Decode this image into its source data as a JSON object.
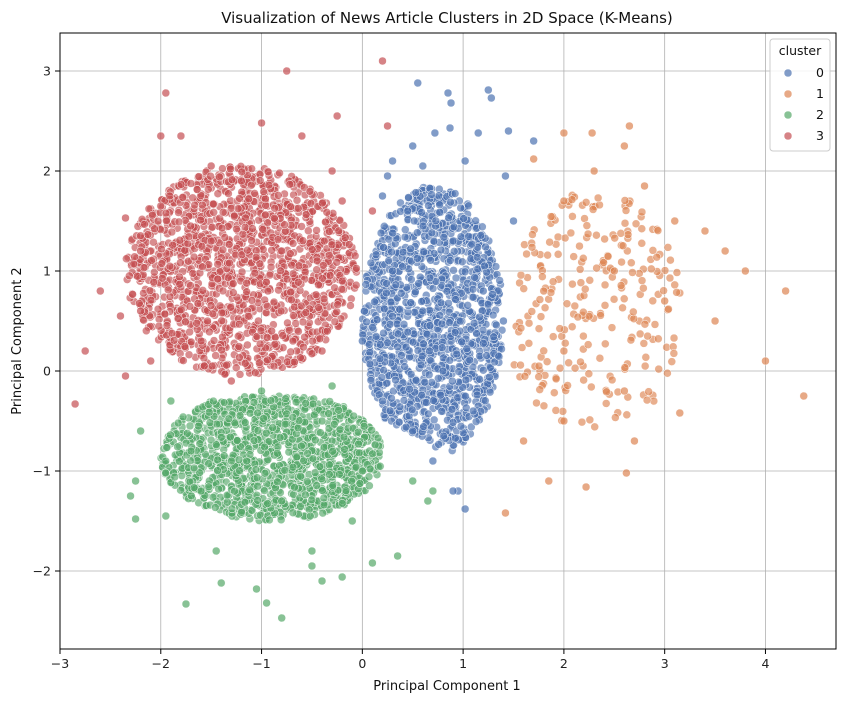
{
  "chart_data": {
    "type": "scatter",
    "title": "Visualization of News Article Clusters in 2D Space (K-Means)",
    "xlabel": "Principal Component 1",
    "ylabel": "Principal Component 2",
    "xlim": [
      -3.0,
      4.7
    ],
    "ylim": [
      -2.78,
      3.38
    ],
    "xticks": [
      -3,
      -2,
      -1,
      0,
      1,
      2,
      3,
      4
    ],
    "yticks": [
      -2,
      -1,
      0,
      1,
      2,
      3
    ],
    "grid": true,
    "legend": {
      "title": "cluster",
      "placement": "top-right",
      "entries": [
        {
          "label": "0",
          "color": "#4c72b0"
        },
        {
          "label": "1",
          "color": "#dd8452"
        },
        {
          "label": "2",
          "color": "#55a868"
        },
        {
          "label": "3",
          "color": "#c44e52"
        }
      ]
    },
    "series": [
      {
        "name": "0",
        "color": "#4c72b0",
        "points": [
          [
            0.55,
            2.88
          ],
          [
            0.85,
            2.78
          ],
          [
            1.25,
            2.81
          ],
          [
            1.28,
            2.73
          ],
          [
            0.88,
            2.68
          ],
          [
            0.72,
            2.38
          ],
          [
            0.87,
            2.43
          ],
          [
            1.15,
            2.38
          ],
          [
            1.45,
            2.4
          ],
          [
            1.7,
            2.3
          ],
          [
            0.5,
            2.25
          ],
          [
            0.3,
            2.1
          ],
          [
            0.6,
            2.05
          ],
          [
            1.02,
            2.1
          ],
          [
            0.25,
            1.95
          ],
          [
            1.42,
            1.95
          ],
          [
            0.2,
            1.75
          ],
          [
            0.45,
            1.6
          ],
          [
            1.5,
            1.5
          ],
          [
            0.9,
            1.3
          ],
          [
            0.3,
            1.0
          ],
          [
            0.6,
            0.6
          ],
          [
            1.2,
            0.8
          ],
          [
            0.0,
            0.3
          ],
          [
            0.8,
            0.0
          ],
          [
            1.4,
            0.5
          ],
          [
            0.2,
            -0.3
          ],
          [
            0.5,
            -0.6
          ],
          [
            1.1,
            -0.4
          ],
          [
            0.7,
            -0.9
          ],
          [
            0.95,
            -1.2
          ],
          [
            0.9,
            -1.2
          ],
          [
            1.02,
            -1.38
          ]
        ]
      },
      {
        "name": "1",
        "color": "#dd8452",
        "points": [
          [
            2.65,
            2.45
          ],
          [
            2.0,
            2.38
          ],
          [
            2.28,
            2.38
          ],
          [
            2.6,
            2.25
          ],
          [
            1.7,
            2.12
          ],
          [
            2.3,
            2.0
          ],
          [
            2.8,
            1.85
          ],
          [
            2.0,
            1.7
          ],
          [
            3.1,
            1.5
          ],
          [
            3.4,
            1.4
          ],
          [
            3.6,
            1.2
          ],
          [
            3.8,
            1.0
          ],
          [
            2.5,
            1.0
          ],
          [
            1.8,
            0.8
          ],
          [
            3.0,
            0.7
          ],
          [
            4.2,
            0.8
          ],
          [
            3.5,
            0.5
          ],
          [
            4.0,
            0.1
          ],
          [
            4.38,
            -0.25
          ],
          [
            2.0,
            0.2
          ],
          [
            2.6,
            -0.2
          ],
          [
            3.15,
            -0.42
          ],
          [
            2.7,
            -0.7
          ],
          [
            2.0,
            -0.5
          ],
          [
            1.6,
            -0.7
          ],
          [
            1.85,
            -1.1
          ],
          [
            2.22,
            -1.16
          ],
          [
            2.62,
            -1.02
          ],
          [
            1.42,
            -1.42
          ]
        ]
      },
      {
        "name": "2",
        "color": "#55a868",
        "points": [
          [
            -0.3,
            -0.15
          ],
          [
            -1.0,
            -0.2
          ],
          [
            -1.9,
            -0.3
          ],
          [
            -2.2,
            -0.6
          ],
          [
            -2.25,
            -1.1
          ],
          [
            -2.25,
            -1.48
          ],
          [
            -2.3,
            -1.25
          ],
          [
            -1.95,
            -1.45
          ],
          [
            -1.6,
            -1.2
          ],
          [
            -1.45,
            -1.8
          ],
          [
            -1.75,
            -2.33
          ],
          [
            -1.4,
            -2.12
          ],
          [
            -1.05,
            -2.18
          ],
          [
            -0.95,
            -2.32
          ],
          [
            -0.8,
            -2.47
          ],
          [
            -0.5,
            -1.95
          ],
          [
            -0.5,
            -1.8
          ],
          [
            -0.4,
            -2.1
          ],
          [
            0.35,
            -1.85
          ],
          [
            0.1,
            -1.92
          ],
          [
            -0.2,
            -2.06
          ],
          [
            0.7,
            -1.2
          ],
          [
            0.65,
            -1.3
          ],
          [
            -0.4,
            -0.5
          ],
          [
            -1.3,
            -0.9
          ],
          [
            -0.8,
            -1.3
          ],
          [
            0.0,
            -1.0
          ],
          [
            0.5,
            -1.1
          ],
          [
            -1.7,
            -0.8
          ],
          [
            -0.1,
            -1.5
          ]
        ]
      },
      {
        "name": "3",
        "color": "#c44e52",
        "points": [
          [
            -2.85,
            -0.33
          ],
          [
            -2.75,
            0.2
          ],
          [
            -2.35,
            -0.05
          ],
          [
            -2.4,
            0.55
          ],
          [
            -2.35,
            1.53
          ],
          [
            -2.0,
            1.65
          ],
          [
            -1.95,
            2.78
          ],
          [
            -2.0,
            2.35
          ],
          [
            -1.8,
            2.35
          ],
          [
            -1.0,
            2.48
          ],
          [
            -0.6,
            2.35
          ],
          [
            -0.25,
            2.55
          ],
          [
            -0.75,
            3.0
          ],
          [
            0.2,
            3.1
          ],
          [
            0.25,
            2.45
          ],
          [
            -1.5,
            2.05
          ],
          [
            -1.2,
            1.9
          ],
          [
            -0.3,
            2.0
          ],
          [
            -2.2,
            1.2
          ],
          [
            -1.5,
            1.3
          ],
          [
            -0.8,
            1.2
          ],
          [
            -0.2,
            0.9
          ],
          [
            -2.2,
            0.6
          ],
          [
            -1.6,
            0.3
          ],
          [
            -0.9,
            0.4
          ],
          [
            -0.4,
            0.2
          ],
          [
            -1.3,
            -0.1
          ],
          [
            -0.2,
            1.7
          ],
          [
            0.1,
            1.6
          ],
          [
            -2.6,
            0.8
          ],
          [
            -2.1,
            0.1
          ]
        ]
      }
    ]
  }
}
